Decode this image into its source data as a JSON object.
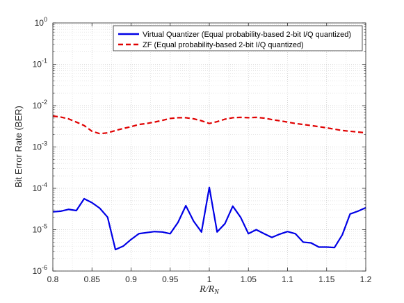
{
  "chart_data": {
    "type": "line",
    "xlabel_var": "R",
    "xlabel_sub": "N",
    "ylabel": "Bit Error Rate (BER)",
    "yscale": "log",
    "xlim": [
      0.8,
      1.2
    ],
    "ylim": [
      1e-06,
      1
    ],
    "grid": true,
    "minor_grid": true,
    "legend_position": "top-right",
    "x_ticks": [
      0.8,
      0.85,
      0.9,
      0.95,
      1,
      1.05,
      1.1,
      1.15,
      1.2
    ],
    "x_tick_labels": [
      "0.8",
      "0.85",
      "0.9",
      "0.95",
      "1",
      "1.05",
      "1.1",
      "1.15",
      "1.2"
    ],
    "y_tick_exponents": [
      -6,
      -5,
      -4,
      -3,
      -2,
      -1,
      0
    ],
    "y_tick_base": "10",
    "x": [
      0.8,
      0.81,
      0.82,
      0.83,
      0.84,
      0.85,
      0.86,
      0.87,
      0.88,
      0.89,
      0.9,
      0.91,
      0.92,
      0.93,
      0.94,
      0.95,
      0.96,
      0.97,
      0.98,
      0.99,
      1.0,
      1.01,
      1.02,
      1.03,
      1.04,
      1.05,
      1.06,
      1.07,
      1.08,
      1.09,
      1.1,
      1.11,
      1.12,
      1.13,
      1.14,
      1.15,
      1.16,
      1.17,
      1.18,
      1.19,
      1.2
    ],
    "series": [
      {
        "name": "Virtual Quantizer (Equal probability-based 2-bit I/Q quantized)",
        "color": "#0000e6",
        "dash": "solid",
        "values": [
          2.7e-05,
          2.8e-05,
          3.1e-05,
          2.9e-05,
          5.6e-05,
          4.5e-05,
          3.3e-05,
          2e-05,
          3.3e-06,
          4e-06,
          5.8e-06,
          8e-06,
          8.5e-06,
          9e-06,
          8.8e-06,
          8e-06,
          1.5e-05,
          3.8e-05,
          1.6e-05,
          8.8e-06,
          0.000105,
          8.8e-06,
          1.4e-05,
          3.7e-05,
          2e-05,
          8e-06,
          1e-05,
          8e-06,
          6.5e-06,
          7.8e-06,
          9e-06,
          8e-06,
          5e-06,
          4.8e-06,
          3.8e-06,
          3.8e-06,
          3.7e-06,
          7.5e-06,
          2.4e-05,
          2.8e-05,
          3.4e-05
        ]
      },
      {
        "name": "ZF (Equal probability-based 2-bit I/Q quantized)",
        "color": "#e00000",
        "dash": "dashed",
        "values": [
          0.0056,
          0.0053,
          0.0048,
          0.004,
          0.0033,
          0.0024,
          0.0021,
          0.0022,
          0.0025,
          0.0028,
          0.0031,
          0.0035,
          0.0037,
          0.004,
          0.0044,
          0.0049,
          0.0051,
          0.0051,
          0.0048,
          0.0043,
          0.0037,
          0.0041,
          0.0047,
          0.0051,
          0.0052,
          0.0051,
          0.0052,
          0.005,
          0.0046,
          0.0043,
          0.004,
          0.0037,
          0.0035,
          0.0033,
          0.0031,
          0.0029,
          0.0027,
          0.0025,
          0.0024,
          0.0023,
          0.0022
        ]
      }
    ]
  }
}
